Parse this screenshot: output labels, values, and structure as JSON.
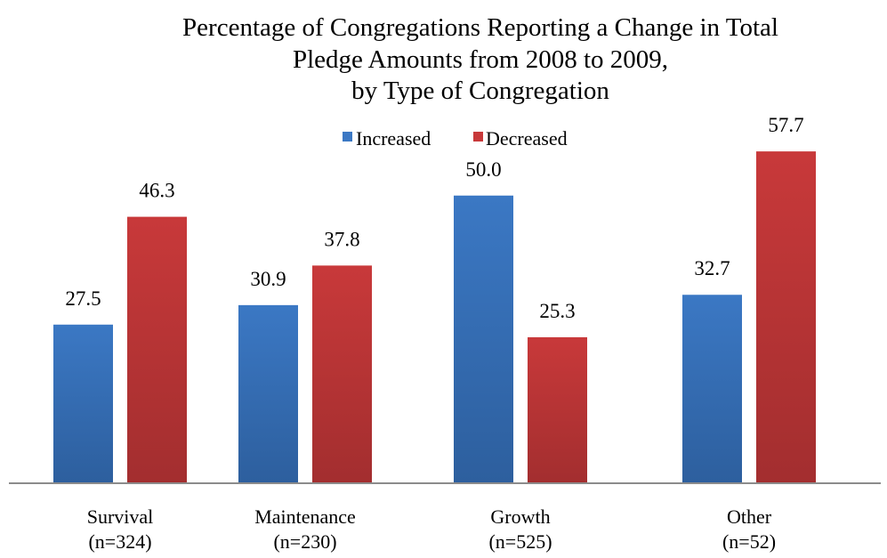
{
  "chart_data": {
    "type": "bar",
    "title": [
      "Percentage of Congregations Reporting a Change in Total",
      "Pledge Amounts from 2008 to 2009,",
      "by Type of Congregation"
    ],
    "categories": [
      [
        "Survival",
        "(n=324)"
      ],
      [
        "Maintenance",
        "(n=230)"
      ],
      [
        "Growth",
        "(n=525)"
      ],
      [
        "Other",
        "(n=52)"
      ]
    ],
    "series": [
      {
        "name": "Increased",
        "values": [
          27.5,
          30.9,
          50.0,
          32.7
        ],
        "color": "#3b78c4",
        "labels": [
          "27.5",
          "30.9",
          "50.0",
          "32.7"
        ]
      },
      {
        "name": "Decreased",
        "values": [
          46.3,
          37.8,
          25.3,
          57.7
        ],
        "color": "#c8393a",
        "labels": [
          "46.3",
          "37.8",
          "25.3",
          "57.7"
        ]
      }
    ],
    "ylim": [
      0,
      70
    ],
    "legend_position": "top-center",
    "grid": false
  }
}
